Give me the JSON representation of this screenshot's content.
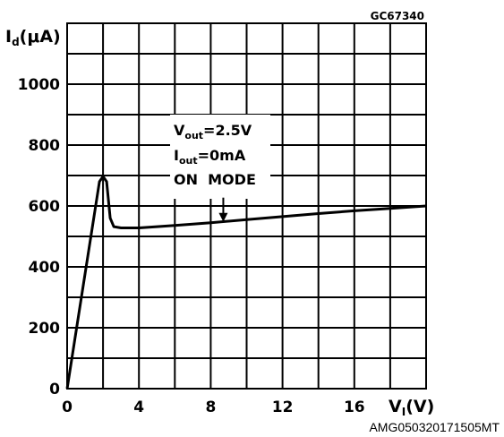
{
  "chart_data": {
    "type": "line",
    "figure_code": "GC67340",
    "footer_code": "AMG050320171505MT",
    "ylabel": {
      "main": "I",
      "sub": "d",
      "unit": "(μA)"
    },
    "xlabel": {
      "main": "V",
      "sub": "I",
      "unit": "(V)"
    },
    "xlim": [
      0,
      20
    ],
    "ylim": [
      0,
      1200
    ],
    "x_ticks": [
      0,
      4,
      8,
      12,
      16
    ],
    "y_ticks": [
      0,
      200,
      400,
      600,
      800,
      1000
    ],
    "grid": true,
    "grid_x_step": 2,
    "grid_y_step": 100,
    "series": [
      {
        "x": [
          0,
          1.8,
          2.0,
          2.2,
          2.4,
          2.6,
          3.0,
          4.0,
          6.0,
          8.0,
          10.0,
          12.0,
          14.0,
          16.0,
          18.0,
          20.0
        ],
        "y": [
          0,
          680,
          697,
          680,
          560,
          532,
          528,
          528,
          536,
          545,
          555,
          565,
          575,
          584,
          592,
          600
        ]
      }
    ],
    "annotation": {
      "lines": [
        {
          "main": "V",
          "sub": "out",
          "rest": "=2.5V"
        },
        {
          "main": "I",
          "sub": "out",
          "rest": "=0mA"
        },
        {
          "main": "ON  MODE",
          "sub": "",
          "rest": ""
        }
      ],
      "arrow_to": {
        "x": 8.7,
        "y": 545
      }
    }
  }
}
